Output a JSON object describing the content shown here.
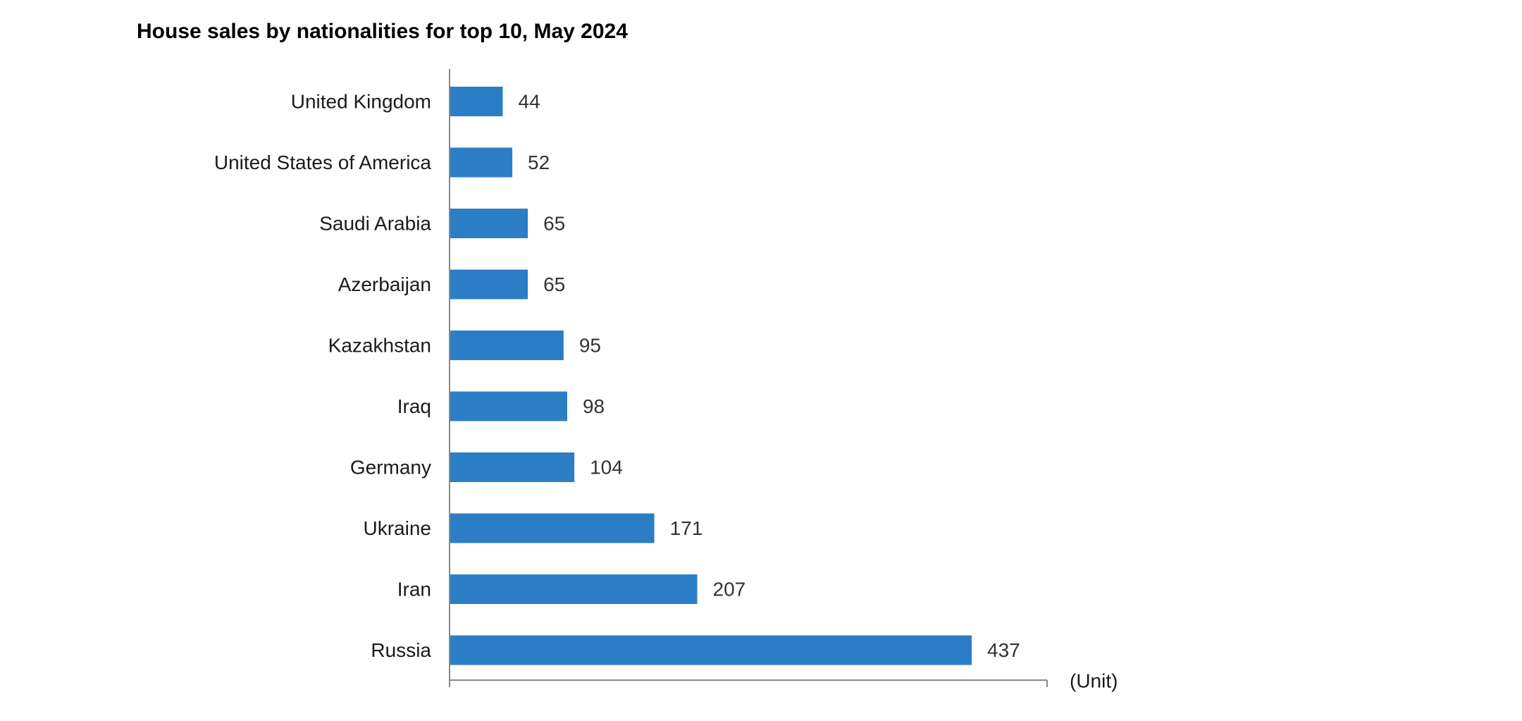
{
  "chart_data": {
    "type": "bar",
    "orientation": "horizontal",
    "title": "House sales by nationalities for top 10, May 2024",
    "unit_label": "(Unit)",
    "categories": [
      "United Kingdom",
      "United States of America",
      "Saudi Arabia",
      "Azerbaijan",
      "Kazakhstan",
      "Iraq",
      "Germany",
      "Ukraine",
      "Iran",
      "Russia"
    ],
    "values": [
      44,
      52,
      65,
      65,
      95,
      98,
      104,
      171,
      207,
      437
    ],
    "xlim": [
      0,
      500
    ],
    "grid": false,
    "legend": "none",
    "bar_color": "#2B7EC6",
    "axis_color": "#888888"
  }
}
